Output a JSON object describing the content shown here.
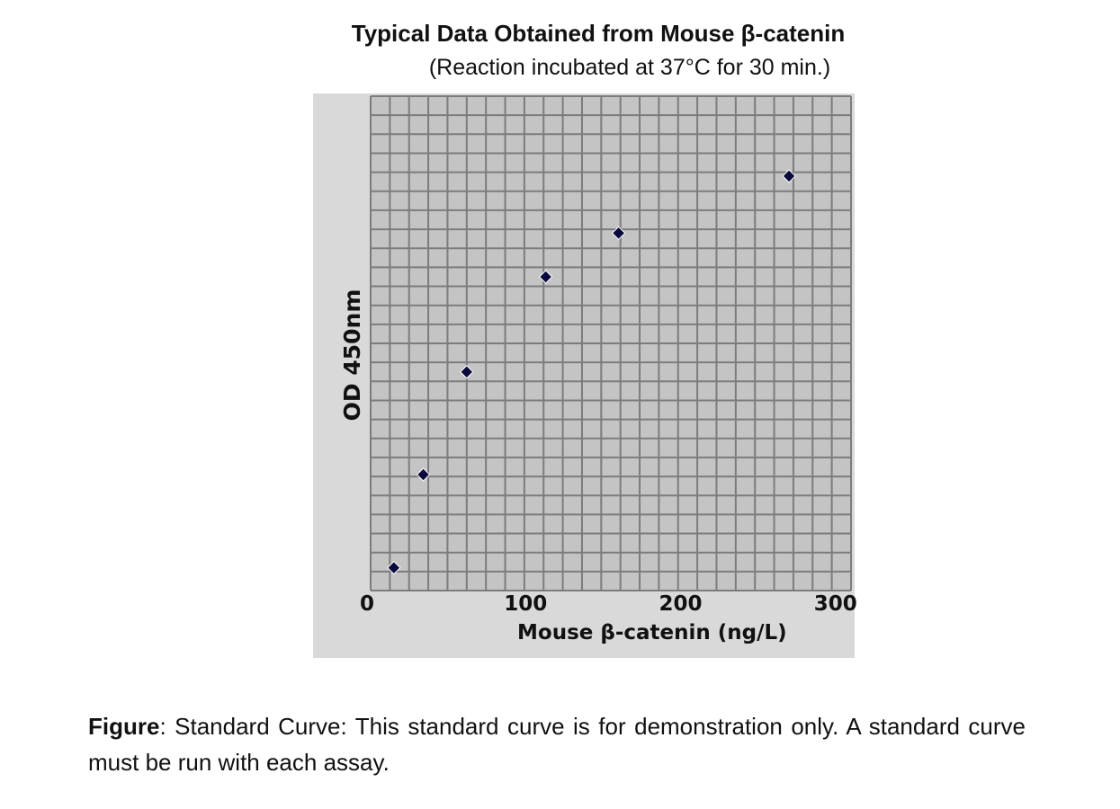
{
  "chart_data": {
    "type": "scatter",
    "title": "Typical Data Obtained from Mouse β-catenin",
    "subtitle": "(Reaction incubated at 37°C for 30 min.)",
    "xlabel": "Mouse β-catenin (ng/L)",
    "ylabel": "OD 450nm",
    "xlim": [
      0,
      310
    ],
    "ylim": [
      0,
      2.6
    ],
    "xticks": [
      0,
      100,
      200,
      300
    ],
    "grid": true,
    "marker_color": "#0a0a3c",
    "points": [
      {
        "x": 15,
        "y": 0.12
      },
      {
        "x": 34,
        "y": 0.61
      },
      {
        "x": 62,
        "y": 1.15
      },
      {
        "x": 113,
        "y": 1.65
      },
      {
        "x": 160,
        "y": 1.88
      },
      {
        "x": 270,
        "y": 2.18
      }
    ]
  },
  "caption": {
    "bold": "Figure",
    "text": ": Standard Curve: This standard curve is for demonstration only. A standard curve must be run with each assay."
  }
}
